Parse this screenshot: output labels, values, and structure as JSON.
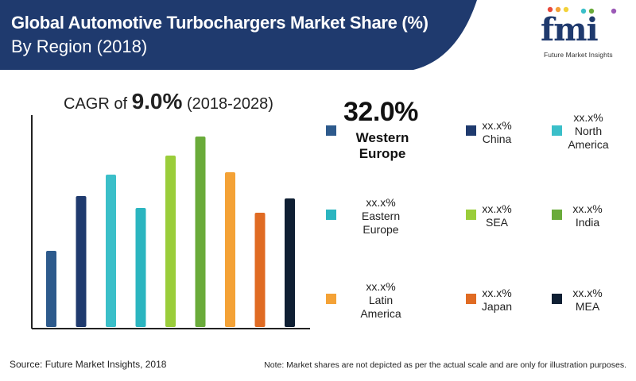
{
  "title": {
    "line1": "Global Automotive Turbochargers Market Share (%)",
    "line2": "By Region (2018)"
  },
  "logo": {
    "text": "fmi",
    "subtitle": "Future Market Insights"
  },
  "cagr": {
    "prefix": "CAGR of ",
    "value": "9.0%",
    "period": "(2018-2028)"
  },
  "highlight": {
    "value": "32.0%",
    "name_line1": "Western",
    "name_line2": "Europe"
  },
  "legend": [
    {
      "value": "xx.x%",
      "line1": "China",
      "line2": "",
      "color": "#1f3a6e"
    },
    {
      "value": "xx.x%",
      "line1": "North",
      "line2": "America",
      "color": "#3bbfc9"
    },
    {
      "value": "xx.x%",
      "line1": "Eastern",
      "line2": "Europe",
      "color": "#2bb5c0"
    },
    {
      "value": "xx.x%",
      "line1": "SEA",
      "line2": "",
      "color": "#9acd3a"
    },
    {
      "value": "xx.x%",
      "line1": "India",
      "line2": "",
      "color": "#6aab3a"
    },
    {
      "value": "xx.x%",
      "line1": "Latin",
      "line2": "America",
      "color": "#f4a236"
    },
    {
      "value": "xx.x%",
      "line1": "Japan",
      "line2": "",
      "color": "#e06b23"
    },
    {
      "value": "xx.x%",
      "line1": "MEA",
      "line2": "",
      "color": "#0f1f33"
    }
  ],
  "chart_data": {
    "type": "bar",
    "title": "Global Automotive Turbochargers Market Share (%) By Region (2018)",
    "categories": [
      "Western Europe",
      "China",
      "North America",
      "Eastern Europe",
      "SEA",
      "India",
      "Latin America",
      "Japan",
      "MEA"
    ],
    "values": [
      32.0,
      55,
      64,
      50,
      72,
      80,
      65,
      48,
      54
    ],
    "colors": [
      "#2d5a8c",
      "#1f3a6e",
      "#3bbfc9",
      "#2bb5c0",
      "#9acd3a",
      "#6aab3a",
      "#f4a236",
      "#e06b23",
      "#0f1f33"
    ],
    "ylim": [
      0,
      100
    ],
    "xlabel": "",
    "ylabel": "",
    "note": "illustrative only - bar heights not to scale"
  },
  "colors": {
    "header": "#1f3a6e",
    "western_europe": "#2d5a8c"
  },
  "footer": {
    "source": "Source: Future Market Insights, 2018",
    "note": "Note: Market shares are not depicted as per the actual scale and are only for illustration purposes."
  }
}
